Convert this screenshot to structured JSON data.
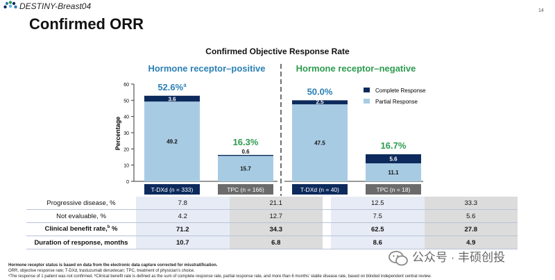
{
  "header": {
    "brand": "DESTINY-Breast04",
    "page_number": "14",
    "title": "Confirmed ORR"
  },
  "colors": {
    "complete": "#0d2a5c",
    "partial": "#a8cbe4",
    "positive_heading": "#2a7fb4",
    "negative_heading": "#2c9b4e",
    "pct_tdxd": "#2a7fb4",
    "pct_tpc": "#2c9b4e"
  },
  "chart_data": {
    "type": "bar",
    "stacked": true,
    "title": "Confirmed Objective Response Rate",
    "ylabel": "Percentage",
    "ylim": [
      0,
      60
    ],
    "yticks": [
      0,
      10,
      20,
      30,
      40,
      50,
      60
    ],
    "groups": [
      "Hormone receptor–positive",
      "Hormone receptor–negative"
    ],
    "categories": [
      "T-DXd (n = 333)",
      "TPC (n = 166)",
      "T-DXd (n = 40)",
      "TPC (n = 18)"
    ],
    "series": [
      {
        "name": "Partial Response",
        "values": [
          49.2,
          15.7,
          47.5,
          11.1
        ]
      },
      {
        "name": "Complete Response",
        "values": [
          3.6,
          0.6,
          2.5,
          5.6
        ]
      }
    ],
    "totals": [
      "52.6%",
      "16.3%",
      "50.0%",
      "16.7%"
    ],
    "total_superscripts": [
      "a",
      "",
      "",
      ""
    ],
    "segment_labels": {
      "partial": [
        "49.2",
        "15.7",
        "47.5",
        "11.1"
      ],
      "complete": [
        "3.6",
        "0.6",
        "2.5",
        "5.6"
      ]
    },
    "legend": [
      "Complete Response",
      "Partial Response"
    ]
  },
  "table": {
    "rows": [
      {
        "label": "Progressive disease, %",
        "sup": "",
        "suffix": "",
        "bold": false,
        "values": [
          "7.8",
          "21.1",
          "12.5",
          "33.3"
        ]
      },
      {
        "label": "Not evaluable, %",
        "sup": "",
        "suffix": "",
        "bold": false,
        "values": [
          "4.2",
          "12.7",
          "7.5",
          "5.6"
        ]
      },
      {
        "label": "Clinical benefit rate,",
        "sup": "b",
        "suffix": " %",
        "bold": true,
        "values": [
          "71.2",
          "34.3",
          "62.5",
          "27.8"
        ]
      },
      {
        "label": "Duration of response, months",
        "sup": "",
        "suffix": "",
        "bold": true,
        "values": [
          "10.7",
          "6.8",
          "8.6",
          "4.9"
        ]
      }
    ]
  },
  "footnotes": {
    "line1": "Hormone receptor status is based on data from the electronic data capture corrected for misstratification.",
    "line2": "ORR, objective response rate; T-DXd, trastuzumab deruxtecan; TPC, treatment of physician’s choice.",
    "line3": "ᵃThe response of 1 patient was not confirmed. ᵇClinical benefit rate is defined as the sum of complete response rate, partial response rate, and more than 6 months’ stable disease rate, based on blinded independent central review."
  },
  "watermark": "公众号 · 丰硕创投"
}
